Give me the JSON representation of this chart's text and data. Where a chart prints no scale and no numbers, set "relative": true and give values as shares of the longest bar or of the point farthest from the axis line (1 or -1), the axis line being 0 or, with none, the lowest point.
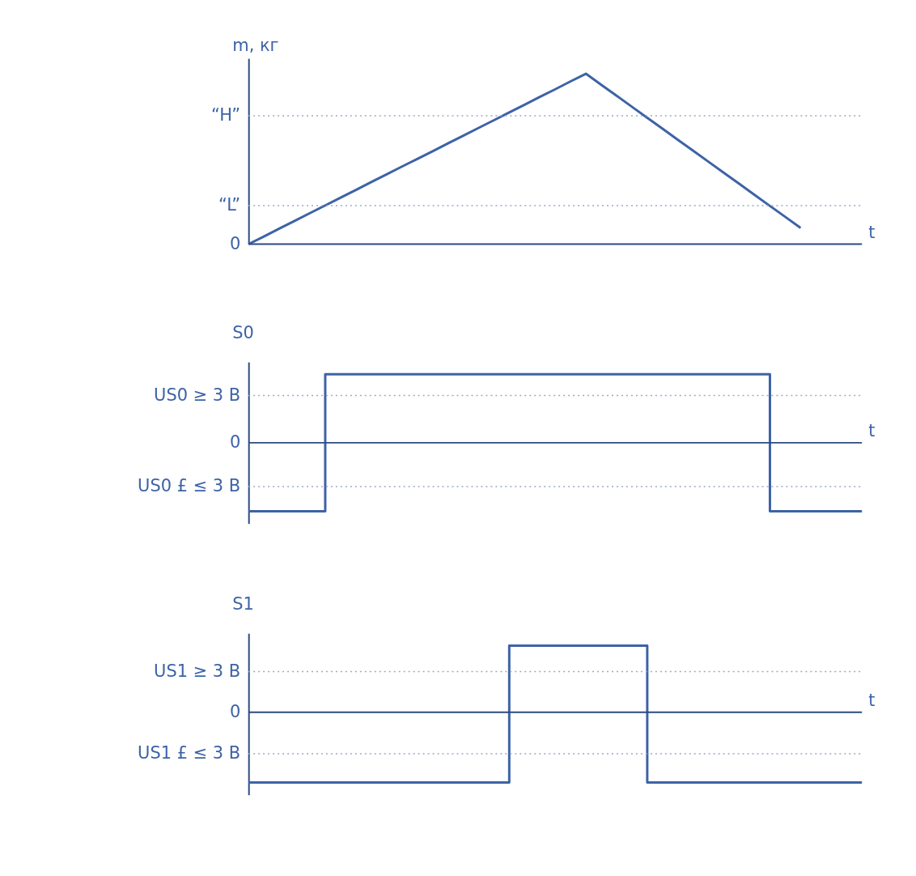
{
  "chart_data": [
    {
      "type": "line",
      "relative": true,
      "ylabel": "m, кг",
      "xlabel": "t",
      "color": "#3d63a6",
      "categories": [
        null,
        null,
        null,
        null,
        null,
        null,
        null,
        null,
        null,
        null,
        null,
        null,
        null,
        null,
        null,
        null,
        null,
        null,
        null,
        null,
        null,
        null,
        null,
        null,
        null,
        null,
        null,
        null,
        null,
        null,
        null,
        null,
        null,
        null,
        null,
        null,
        null,
        null,
        null,
        null,
        null
      ],
      "values": [
        0,
        0.045,
        0.091,
        0.136,
        0.182,
        0.227,
        0.273,
        0.318,
        0.364,
        0.409,
        0.455,
        0.5,
        0.545,
        0.591,
        0.636,
        0.682,
        0.727,
        0.773,
        0.818,
        0.864,
        0.909,
        0.955,
        1,
        0.935,
        0.871,
        0.806,
        0.741,
        0.677,
        0.612,
        0.548,
        0.483,
        0.418,
        0.354,
        0.289,
        0.224,
        0.16,
        0.095,
        null,
        null,
        null,
        null
      ],
      "ref_lines": [
        {
          "axis": "y",
          "value": 0,
          "label": "0",
          "line_style": "solid"
        },
        {
          "axis": "y",
          "value": 0.753,
          "label": "“H”",
          "line_style": "dotted"
        },
        {
          "axis": "y",
          "value": 0.226,
          "label": "“L”",
          "line_style": "dotted"
        }
      ]
    },
    {
      "type": "step",
      "relative": true,
      "title": "S0",
      "xlabel": "t",
      "color": "#3d63a6",
      "categories": [
        null,
        null,
        null,
        null,
        null,
        null,
        null,
        null,
        null,
        null,
        null,
        null,
        null,
        null,
        null,
        null,
        null,
        null,
        null,
        null,
        null,
        null,
        null,
        null,
        null,
        null,
        null,
        null,
        null,
        null,
        null,
        null,
        null,
        null,
        null,
        null,
        null,
        null,
        null,
        null,
        null
      ],
      "values": [
        -1,
        -1,
        -1,
        -1,
        -1,
        1,
        1,
        1,
        1,
        1,
        1,
        1,
        1,
        1,
        1,
        1,
        1,
        1,
        1,
        1,
        1,
        1,
        1,
        1,
        1,
        1,
        1,
        1,
        1,
        1,
        1,
        1,
        1,
        1,
        -1,
        -1,
        -1,
        -1,
        -1,
        -1,
        -1
      ],
      "ref_lines": [
        {
          "axis": "y",
          "value": 0,
          "label": "0",
          "line_style": "solid"
        },
        {
          "axis": "y",
          "value": 0.69,
          "label": "US0 ≥ 3 B",
          "line_style": "dotted"
        },
        {
          "axis": "y",
          "value": -0.64,
          "label": "US0 £ ≤ 3 B",
          "line_style": "dotted"
        }
      ]
    },
    {
      "type": "step",
      "relative": true,
      "title": "S1",
      "xlabel": "t",
      "color": "#3d63a6",
      "categories": [
        null,
        null,
        null,
        null,
        null,
        null,
        null,
        null,
        null,
        null,
        null,
        null,
        null,
        null,
        null,
        null,
        null,
        null,
        null,
        null,
        null,
        null,
        null,
        null,
        null,
        null,
        null,
        null,
        null,
        null,
        null,
        null,
        null,
        null,
        null,
        null,
        null,
        null,
        null,
        null,
        null
      ],
      "values": [
        -1,
        -1,
        -1,
        -1,
        -1,
        -1,
        -1,
        -1,
        -1,
        -1,
        -1,
        -1,
        -1,
        -1,
        -1,
        -1,
        -1,
        0.95,
        0.95,
        0.95,
        0.95,
        0.95,
        0.95,
        0.95,
        0.95,
        0.95,
        -1,
        -1,
        -1,
        -1,
        -1,
        -1,
        -1,
        -1,
        -1,
        -1,
        -1,
        -1,
        -1,
        -1,
        -1
      ],
      "ref_lines": [
        {
          "axis": "y",
          "value": 0,
          "label": "0",
          "line_style": "solid"
        },
        {
          "axis": "y",
          "value": 0.58,
          "label": "US1 ≥ 3 B",
          "line_style": "dotted"
        },
        {
          "axis": "y",
          "value": -0.59,
          "label": "US1 £ ≤ 3 B",
          "line_style": "dotted"
        }
      ]
    }
  ]
}
